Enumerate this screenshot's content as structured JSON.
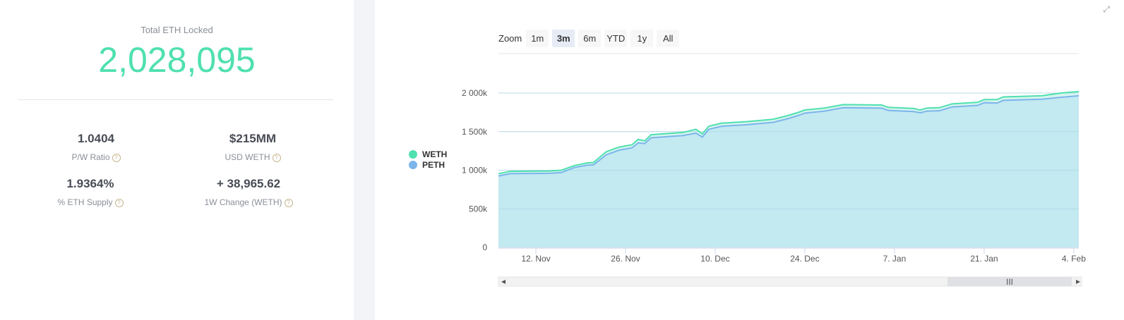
{
  "summary": {
    "total_label": "Total ETH Locked",
    "total_value": "2,028,095",
    "stats": [
      {
        "value": "1.0404",
        "label": "P/W Ratio"
      },
      {
        "value": "$215MM",
        "label": "USD WETH"
      },
      {
        "value": "1.9364%",
        "label": "% ETH Supply"
      },
      {
        "value": "+ 38,965.62",
        "label": "1W Change (WETH)"
      }
    ],
    "help_icon": "?",
    "accent_color": "#4fe0b0"
  },
  "zoom": {
    "label": "Zoom",
    "buttons": [
      "1m",
      "3m",
      "6m",
      "YTD",
      "1y",
      "All"
    ],
    "active": "3m"
  },
  "chart_data": {
    "type": "area",
    "legend_position": "left",
    "grid": true,
    "ylim": [
      0,
      2200
    ],
    "y_ticks": [
      "0",
      "500k",
      "1 000k",
      "1 500k",
      "2 000k"
    ],
    "y_tick_values": [
      0,
      500,
      1000,
      1500,
      2000
    ],
    "x_ticks": [
      "12. Nov",
      "26. Nov",
      "10. Dec",
      "24. Dec",
      "7. Jan",
      "21. Jan",
      "4. Feb"
    ],
    "x": [
      "6 Nov",
      "8 Nov",
      "14 Nov",
      "16 Nov",
      "18 Nov",
      "20 Nov",
      "21 Nov",
      "23 Nov",
      "25 Nov",
      "27 Nov",
      "28 Nov",
      "29 Nov",
      "30 Nov",
      "5 Dec",
      "7 Dec",
      "8 Dec",
      "9 Dec",
      "11 Dec",
      "15 Dec",
      "19 Dec",
      "21 Dec",
      "23 Dec",
      "24 Dec",
      "27 Dec",
      "30 Dec",
      "5 Jan",
      "6 Jan",
      "10 Jan",
      "11 Jan",
      "12 Jan",
      "14 Jan",
      "16 Jan",
      "20 Jan",
      "21 Jan",
      "23 Jan",
      "24 Jan",
      "30 Jan",
      "2 Feb",
      "6 Feb"
    ],
    "series": [
      {
        "name": "WETH",
        "color": "#4fe0b0",
        "values": [
          955,
          985,
          990,
          1000,
          1060,
          1095,
          1100,
          1240,
          1300,
          1330,
          1400,
          1380,
          1460,
          1490,
          1530,
          1470,
          1570,
          1610,
          1630,
          1660,
          1700,
          1750,
          1780,
          1805,
          1850,
          1845,
          1815,
          1800,
          1780,
          1805,
          1810,
          1860,
          1880,
          1915,
          1915,
          1950,
          1965,
          2000,
          2020
        ]
      },
      {
        "name": "PETH",
        "color": "#7cb5ec",
        "values": [
          925,
          955,
          960,
          970,
          1035,
          1065,
          1070,
          1200,
          1260,
          1290,
          1355,
          1345,
          1420,
          1450,
          1480,
          1430,
          1530,
          1570,
          1590,
          1620,
          1660,
          1710,
          1740,
          1765,
          1810,
          1805,
          1775,
          1760,
          1745,
          1765,
          1770,
          1820,
          1840,
          1875,
          1870,
          1905,
          1920,
          1945,
          1965
        ]
      }
    ]
  },
  "expand_icon": "expand-icon"
}
